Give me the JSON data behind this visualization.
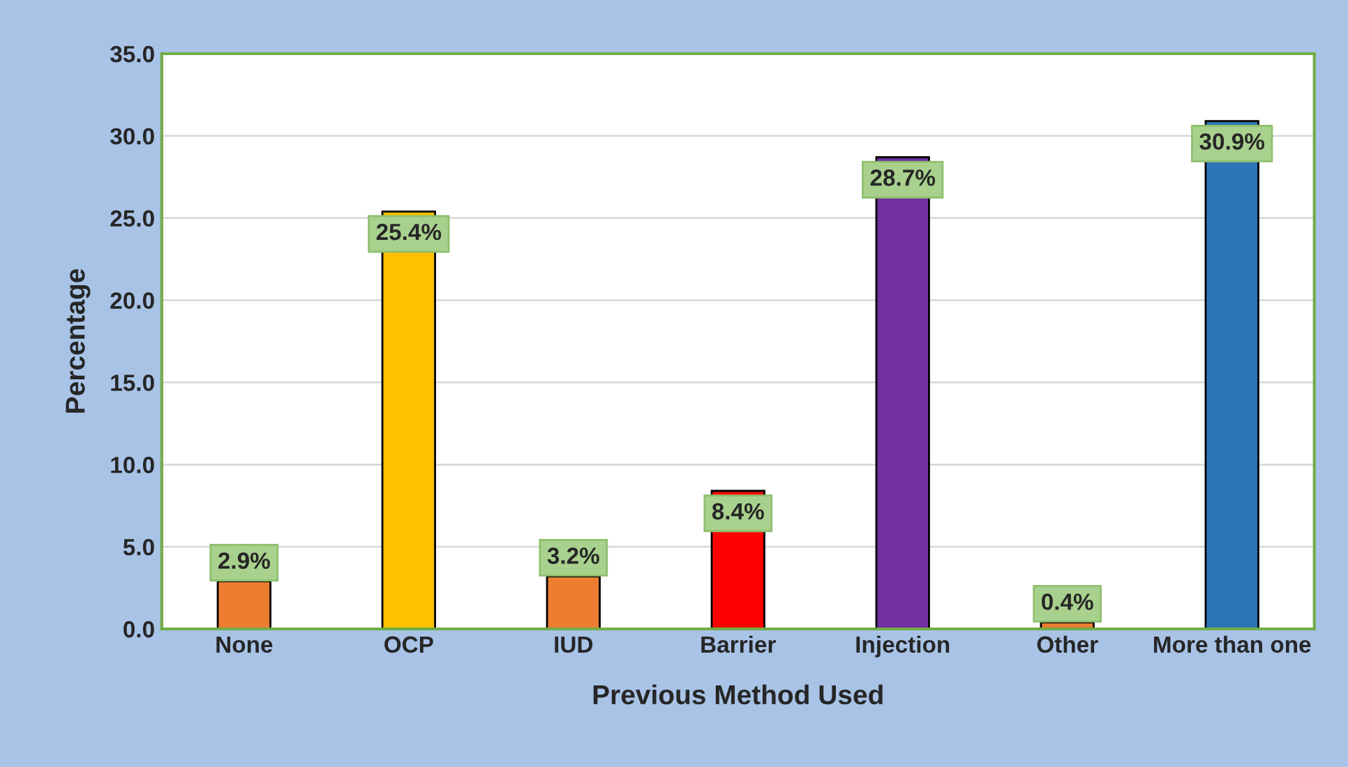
{
  "chart_data": {
    "type": "bar",
    "xlabel": "Previous Method Used",
    "ylabel": "Percentage",
    "categories": [
      "None",
      "OCP",
      "IUD",
      "Barrier",
      "Injection",
      "Other",
      "More than one"
    ],
    "values": [
      2.9,
      25.4,
      3.2,
      8.4,
      28.7,
      0.4,
      30.9
    ],
    "colors": [
      "#ed7d31",
      "#ffc000",
      "#ed7d31",
      "#ff0000",
      "#7030a0",
      "#ed7d31",
      "#2e75b6"
    ],
    "value_labels": [
      "2.9%",
      "25.4%",
      "3.2%",
      "8.4%",
      "28.7%",
      "0.4%",
      "30.9%"
    ],
    "ylim": [
      0,
      35
    ],
    "yticks": [
      {
        "value": 0,
        "label": "0.0"
      },
      {
        "value": 5,
        "label": "5.0"
      },
      {
        "value": 10,
        "label": "10.0"
      },
      {
        "value": 15,
        "label": "15.0"
      },
      {
        "value": 20,
        "label": "20.0"
      },
      {
        "value": 25,
        "label": "25.0"
      },
      {
        "value": 30,
        "label": "30.0"
      },
      {
        "value": 35,
        "label": "35.0"
      }
    ],
    "grid": "y"
  }
}
